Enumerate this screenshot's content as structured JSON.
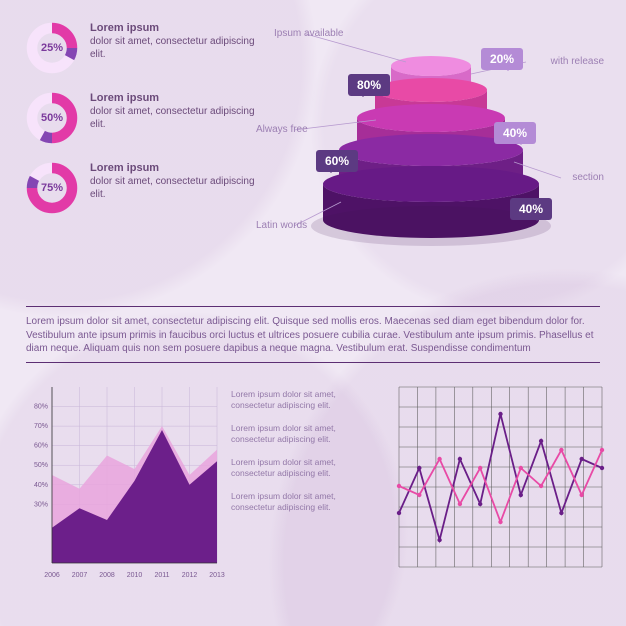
{
  "colors": {
    "bg": "#f0e8f4",
    "text": "#6b4a7a",
    "divider": "#5c2e73",
    "donut_track": "#f7e3fb",
    "donut_fill": "#e23aa7",
    "donut_accent": "#8446b3",
    "donut_text": "#7b3a9c",
    "bubble_light": "#b48bd6",
    "bubble_dark": "#5c3a82",
    "tier_colors": [
      "#ef8ce0",
      "#e84aa6",
      "#c93ab3",
      "#8b2aa3",
      "#671a86",
      "#4e1266"
    ]
  },
  "donuts": [
    {
      "percent": 25,
      "title": "Lorem ipsum",
      "body": "dolor sit amet, consectetur adipiscing elit."
    },
    {
      "percent": 50,
      "title": "Lorem ipsum",
      "body": "dolor sit amet, consectetur adipiscing elit."
    },
    {
      "percent": 75,
      "title": "Lorem ipsum",
      "body": "dolor sit amet, consectetur adipiscing elit."
    }
  ],
  "pyramid": {
    "labels_left": [
      "Ipsum available",
      "Always free",
      "Latin words"
    ],
    "labels_right": [
      "with release",
      "section"
    ],
    "bubbles": [
      {
        "value": "20%",
        "side": "right",
        "color": "#b48bd6"
      },
      {
        "value": "80%",
        "side": "left",
        "color": "#5c3a82"
      },
      {
        "value": "40%",
        "side": "right",
        "color": "#b48bd6"
      },
      {
        "value": "60%",
        "side": "left",
        "color": "#5c3a82"
      },
      {
        "value": "40%",
        "side": "right",
        "color": "#5c3a82"
      }
    ],
    "tiers": [
      {
        "rw": 40,
        "ry": 10,
        "h": 24,
        "tcol": "#ef8ce0",
        "scol": "#d86ac8"
      },
      {
        "rw": 56,
        "ry": 12,
        "h": 28,
        "tcol": "#e84aa6",
        "scol": "#c83996"
      },
      {
        "rw": 74,
        "ry": 14,
        "h": 32,
        "tcol": "#c93ab3",
        "scol": "#a62e98"
      },
      {
        "rw": 92,
        "ry": 16,
        "h": 34,
        "tcol": "#8b2aa3",
        "scol": "#6e1f86"
      },
      {
        "rw": 108,
        "ry": 18,
        "h": 36,
        "tcol": "#671a86",
        "scol": "#4e1266"
      }
    ]
  },
  "paragraph": "Lorem ipsum dolor sit amet, consectetur adipiscing elit. Quisque sed mollis eros. Maecenas sed diam eget bibendum dolor for. Vestibulum ante ipsum primis in faucibus orci luctus et ultrices posuere cubilia curae. Vestibulum ante ipsum primis. Phasellus et diam neque. Aliquam quis non sem posuere dapibus a neque magna. Vestibulum erat. Suspendisse condimentum",
  "area_chart": {
    "type": "area",
    "ylabels": [
      "80%",
      "70%",
      "60%",
      "50%",
      "40%",
      "30%"
    ],
    "xlabels": [
      "2006",
      "2007",
      "2008",
      "2010",
      "2011",
      "2012",
      "2013"
    ],
    "back": {
      "color": "#e9a5dd",
      "points": [
        [
          0,
          45
        ],
        [
          1,
          38
        ],
        [
          2,
          55
        ],
        [
          3,
          48
        ],
        [
          4,
          70
        ],
        [
          5,
          45
        ],
        [
          6,
          58
        ]
      ]
    },
    "front": {
      "color": "#6c1f8a",
      "points": [
        [
          0,
          18
        ],
        [
          1,
          28
        ],
        [
          2,
          22
        ],
        [
          3,
          42
        ],
        [
          4,
          68
        ],
        [
          5,
          40
        ],
        [
          6,
          52
        ]
      ]
    },
    "ylim": [
      0,
      90
    ],
    "grid_color": "#c8b4d8"
  },
  "mid_blocks": [
    "Lorem ipsum dolor sit amet, consectetur adipiscing elit.",
    "Lorem ipsum dolor sit amet, consectetur adipiscing elit.",
    "Lorem ipsum dolor sit amet, consectetur adipiscing elit.",
    "Lorem ipsum dolor sit amet, consectetur adipiscing elit."
  ],
  "line_chart": {
    "type": "line",
    "grid": {
      "rows": 9,
      "cols": 11,
      "color": "#5a5a5a"
    },
    "series": [
      {
        "color": "#6a1e88",
        "width": 1.8,
        "points": [
          30,
          55,
          15,
          60,
          35,
          85,
          40,
          70,
          30,
          60,
          55
        ]
      },
      {
        "color": "#e84aa6",
        "width": 1.8,
        "points": [
          45,
          40,
          60,
          35,
          55,
          25,
          55,
          45,
          65,
          40,
          65
        ]
      }
    ],
    "ylim": [
      0,
      100
    ]
  }
}
